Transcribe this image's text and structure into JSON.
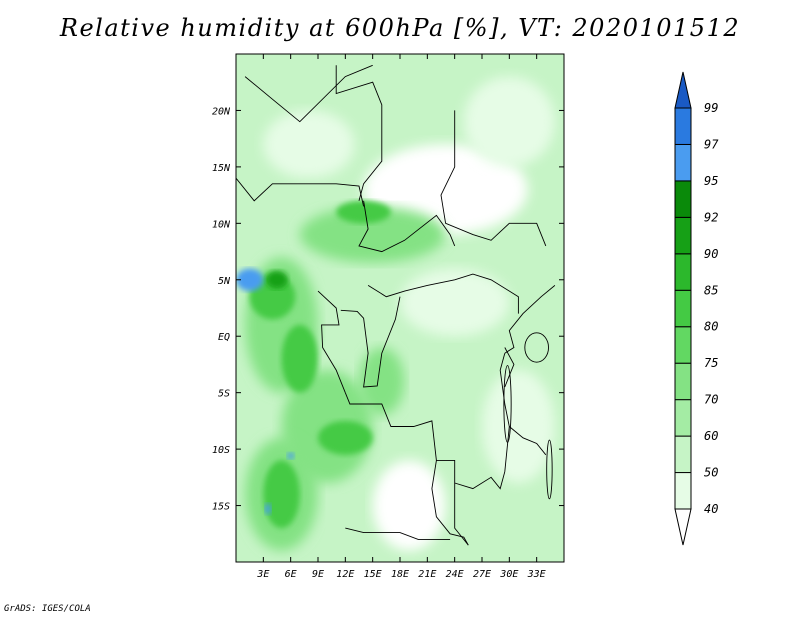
{
  "title": "Relative humidity at 600hPa [%], VT: 2020101512",
  "footer": "GrADS: IGES/COLA",
  "map": {
    "lon_range": [
      0,
      36
    ],
    "lat_range": [
      -20,
      25
    ],
    "lat_ticks": [
      {
        "value": 20,
        "label": "20N"
      },
      {
        "value": 15,
        "label": "15N"
      },
      {
        "value": 10,
        "label": "10N"
      },
      {
        "value": 5,
        "label": "5N"
      },
      {
        "value": 0,
        "label": "EQ"
      },
      {
        "value": -5,
        "label": "5S"
      },
      {
        "value": -10,
        "label": "10S"
      },
      {
        "value": -15,
        "label": "15S"
      }
    ],
    "lon_ticks": [
      {
        "value": 3,
        "label": "3E"
      },
      {
        "value": 6,
        "label": "6E"
      },
      {
        "value": 9,
        "label": "9E"
      },
      {
        "value": 12,
        "label": "12E"
      },
      {
        "value": 15,
        "label": "15E"
      },
      {
        "value": 18,
        "label": "18E"
      },
      {
        "value": 21,
        "label": "21E"
      },
      {
        "value": 24,
        "label": "24E"
      },
      {
        "value": 27,
        "label": "27E"
      },
      {
        "value": 30,
        "label": "30E"
      },
      {
        "value": 33,
        "label": "33E"
      }
    ]
  },
  "colorbar": {
    "levels": [
      "40",
      "50",
      "60",
      "70",
      "75",
      "80",
      "85",
      "90",
      "92",
      "95",
      "97",
      "99"
    ],
    "colors": [
      "#ffffff",
      "#e6fce6",
      "#c6f4c6",
      "#a4eca4",
      "#84e284",
      "#62d862",
      "#44ca44",
      "#2cb82c",
      "#16a016",
      "#0a8a0a",
      "#4a9cf0",
      "#2a7ae0",
      "#1a5ac4"
    ]
  },
  "field_colors": {
    "dry": "#ffffff",
    "low": "#e6fce6",
    "mid": "#c6f4c6",
    "moist": "#84e284",
    "wet": "#44ca44",
    "very_wet": "#16a016",
    "saturated": "#4a9cf0"
  }
}
